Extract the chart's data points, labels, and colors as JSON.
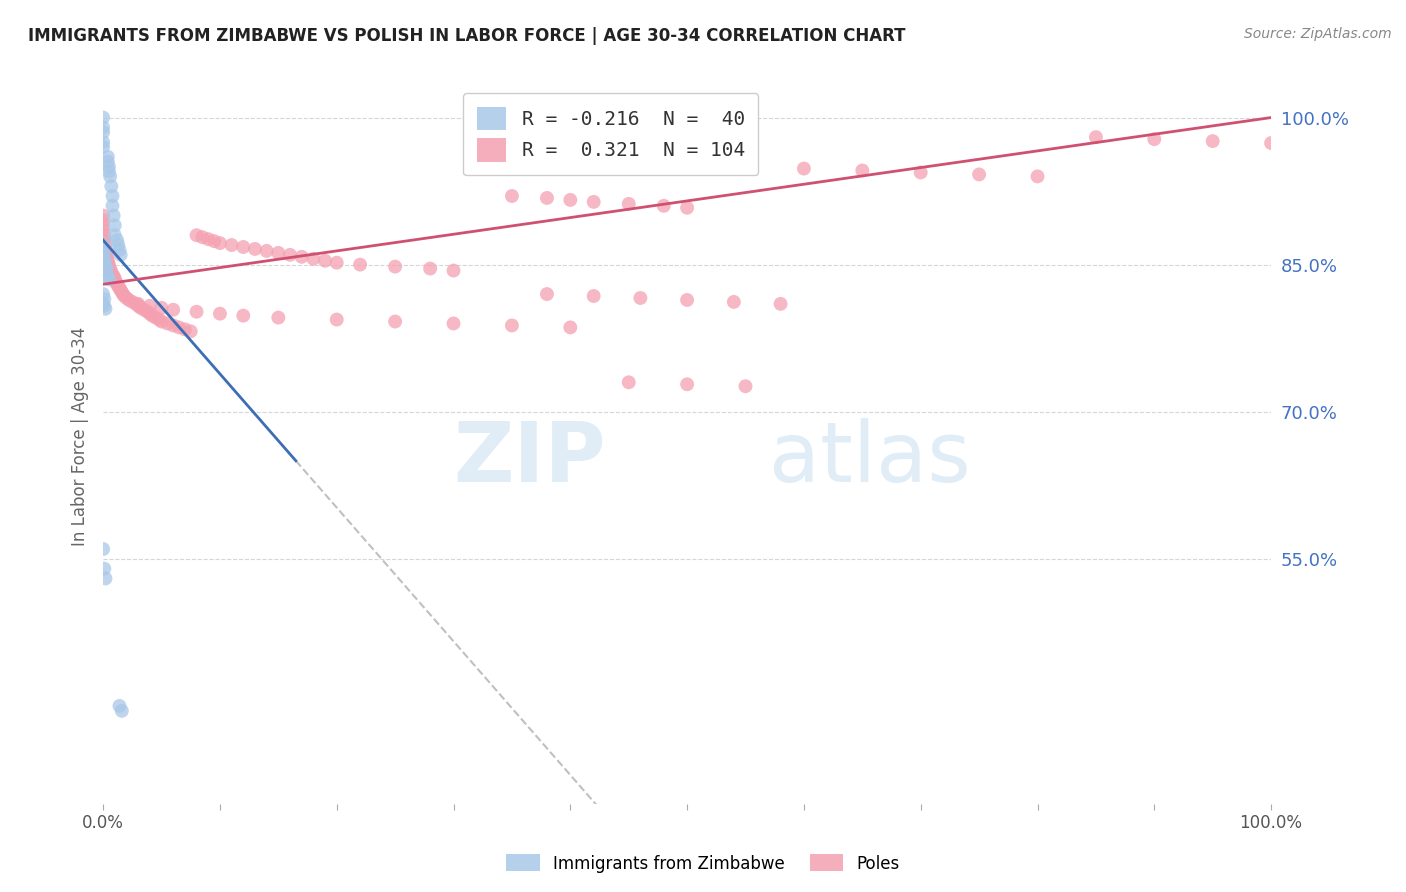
{
  "title": "IMMIGRANTS FROM ZIMBABWE VS POLISH IN LABOR FORCE | AGE 30-34 CORRELATION CHART",
  "source": "Source: ZipAtlas.com",
  "ylabel": "In Labor Force | Age 30-34",
  "right_yticks": [
    0.55,
    0.7,
    0.85,
    1.0
  ],
  "right_yticklabels": [
    "55.0%",
    "70.0%",
    "85.0%",
    "100.0%"
  ],
  "legend_label_zim": "R = -0.216  N =  40",
  "legend_label_pol": "R =  0.321  N = 104",
  "watermark_zip": "ZIP",
  "watermark_atlas": "atlas",
  "background_color": "#ffffff",
  "grid_color": "#cccccc",
  "zimbabwe_color": "#a8c8e8",
  "poles_color": "#f4a0b0",
  "zimbabwe_trend_color": "#3d6eb5",
  "poles_trend_color": "#d05070",
  "dashed_line_color": "#c0c0c0",
  "title_color": "#222222",
  "source_color": "#888888",
  "axis_label_color": "#4472c4",
  "zimbabwe_scatter_x": [
    0.0,
    0.0,
    0.0,
    0.0,
    0.0,
    0.004,
    0.004,
    0.005,
    0.005,
    0.006,
    0.007,
    0.008,
    0.008,
    0.009,
    0.01,
    0.01,
    0.012,
    0.013,
    0.014,
    0.015,
    0.0,
    0.0,
    0.001,
    0.001,
    0.002,
    0.002,
    0.003,
    0.003,
    0.004,
    0.005,
    0.0,
    0.001,
    0.002,
    0.014,
    0.016,
    0.0,
    0.001,
    0.0,
    0.001,
    0.002
  ],
  "zimbabwe_scatter_y": [
    1.0,
    0.99,
    0.985,
    0.975,
    0.97,
    0.96,
    0.955,
    0.95,
    0.945,
    0.94,
    0.93,
    0.92,
    0.91,
    0.9,
    0.89,
    0.88,
    0.875,
    0.87,
    0.865,
    0.86,
    0.87,
    0.865,
    0.86,
    0.855,
    0.85,
    0.848,
    0.845,
    0.84,
    0.838,
    0.835,
    0.56,
    0.54,
    0.53,
    0.4,
    0.395,
    0.82,
    0.815,
    0.81,
    0.808,
    0.805
  ],
  "poles_scatter_x": [
    0.0,
    0.0,
    0.0,
    0.0,
    0.001,
    0.001,
    0.002,
    0.002,
    0.003,
    0.003,
    0.004,
    0.004,
    0.005,
    0.005,
    0.006,
    0.007,
    0.008,
    0.009,
    0.01,
    0.01,
    0.011,
    0.012,
    0.013,
    0.014,
    0.015,
    0.016,
    0.017,
    0.018,
    0.02,
    0.022,
    0.025,
    0.028,
    0.03,
    0.032,
    0.035,
    0.038,
    0.04,
    0.042,
    0.045,
    0.048,
    0.05,
    0.055,
    0.06,
    0.065,
    0.07,
    0.075,
    0.08,
    0.085,
    0.09,
    0.095,
    0.1,
    0.11,
    0.12,
    0.13,
    0.14,
    0.15,
    0.16,
    0.17,
    0.18,
    0.19,
    0.2,
    0.22,
    0.25,
    0.28,
    0.3,
    0.35,
    0.38,
    0.4,
    0.42,
    0.45,
    0.48,
    0.5,
    0.55,
    0.6,
    0.65,
    0.7,
    0.75,
    0.8,
    0.85,
    0.9,
    0.95,
    1.0,
    0.03,
    0.04,
    0.05,
    0.06,
    0.08,
    0.1,
    0.12,
    0.15,
    0.2,
    0.25,
    0.3,
    0.35,
    0.4,
    0.45,
    0.5,
    0.55,
    0.38,
    0.42,
    0.46,
    0.5,
    0.54,
    0.58
  ],
  "poles_scatter_y": [
    0.9,
    0.895,
    0.89,
    0.885,
    0.88,
    0.875,
    0.87,
    0.865,
    0.86,
    0.858,
    0.855,
    0.852,
    0.85,
    0.848,
    0.845,
    0.843,
    0.84,
    0.838,
    0.836,
    0.834,
    0.832,
    0.83,
    0.828,
    0.826,
    0.824,
    0.822,
    0.82,
    0.818,
    0.816,
    0.814,
    0.812,
    0.81,
    0.808,
    0.806,
    0.804,
    0.802,
    0.8,
    0.798,
    0.796,
    0.794,
    0.792,
    0.79,
    0.788,
    0.786,
    0.784,
    0.782,
    0.88,
    0.878,
    0.876,
    0.874,
    0.872,
    0.87,
    0.868,
    0.866,
    0.864,
    0.862,
    0.86,
    0.858,
    0.856,
    0.854,
    0.852,
    0.85,
    0.848,
    0.846,
    0.844,
    0.92,
    0.918,
    0.916,
    0.914,
    0.912,
    0.91,
    0.908,
    0.95,
    0.948,
    0.946,
    0.944,
    0.942,
    0.94,
    0.98,
    0.978,
    0.976,
    0.974,
    0.81,
    0.808,
    0.806,
    0.804,
    0.802,
    0.8,
    0.798,
    0.796,
    0.794,
    0.792,
    0.79,
    0.788,
    0.786,
    0.73,
    0.728,
    0.726,
    0.82,
    0.818,
    0.816,
    0.814,
    0.812,
    0.81
  ],
  "xlim": [
    0.0,
    1.0
  ],
  "ylim": [
    0.3,
    1.05
  ],
  "zim_trend_x0": 0.0,
  "zim_trend_y0": 0.875,
  "zim_trend_x1": 0.165,
  "zim_trend_y1": 0.65,
  "pol_trend_x0": 0.0,
  "pol_trend_y0": 0.83,
  "pol_trend_x1": 1.0,
  "pol_trend_y1": 1.0
}
